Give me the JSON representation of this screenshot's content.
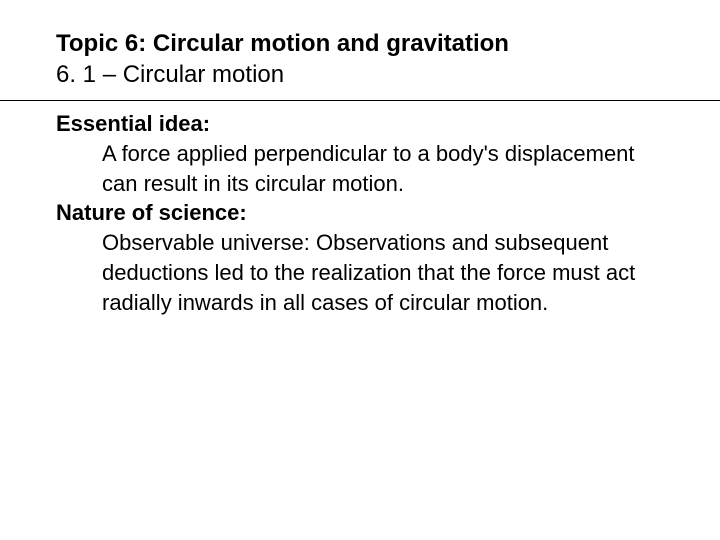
{
  "header": {
    "title": "Topic 6: Circular motion and gravitation",
    "subtitle": "6. 1 – Circular motion"
  },
  "sections": {
    "essential_idea": {
      "label": "Essential idea:",
      "text": "A force applied perpendicular to a body's displacement can result in its circular motion."
    },
    "nature_of_science": {
      "label": "Nature of science:",
      "text": "Observable universe: Observations and subsequent deductions led to the realization that the force must act radially inwards in all cases of circular motion."
    }
  },
  "colors": {
    "background": "#ffffff",
    "text": "#000000",
    "divider": "#000000"
  },
  "typography": {
    "title_fontsize": 24,
    "body_fontsize": 22,
    "font_family": "Arial"
  }
}
